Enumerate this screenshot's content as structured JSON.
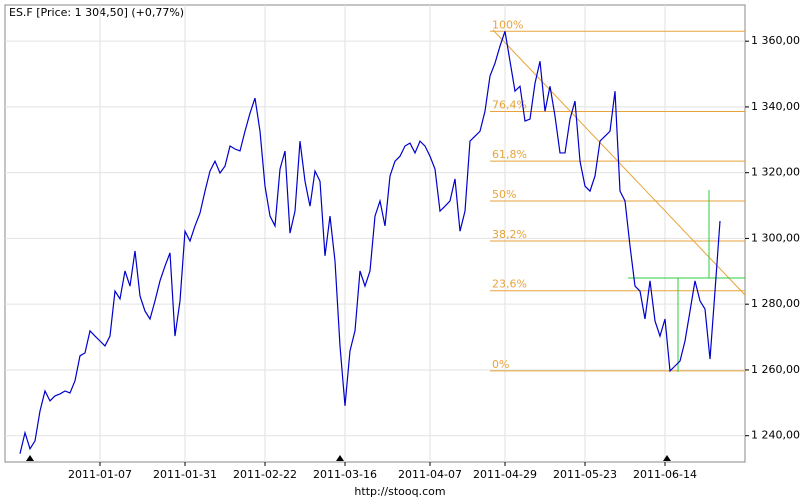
{
  "chart_data": {
    "type": "line",
    "title": "ES.F [Price: 1 304,50] (+0,77%)",
    "footer": "http://stooq.com",
    "categories": [
      null,
      null,
      null,
      null,
      null,
      null,
      null,
      null,
      null,
      null,
      null,
      null,
      null,
      null,
      null,
      null,
      "2011-01-07",
      null,
      null,
      null,
      null,
      null,
      null,
      null,
      null,
      null,
      null,
      null,
      null,
      null,
      null,
      null,
      null,
      "2011-01-31",
      null,
      null,
      null,
      null,
      null,
      null,
      null,
      null,
      null,
      null,
      null,
      null,
      null,
      null,
      null,
      "2011-02-22",
      null,
      null,
      null,
      null,
      null,
      null,
      null,
      null,
      null,
      null,
      null,
      null,
      null,
      null,
      null,
      "2011-03-16",
      null,
      null,
      null,
      null,
      null,
      null,
      null,
      null,
      null,
      null,
      null,
      null,
      null,
      null,
      null,
      null,
      "2011-04-07",
      null,
      null,
      null,
      null,
      null,
      null,
      null,
      null,
      null,
      null,
      null,
      null,
      null,
      null,
      "2011-04-29",
      null,
      null,
      null,
      null,
      null,
      null,
      null,
      null,
      null,
      null,
      null,
      null,
      null,
      null,
      null,
      "2011-05-23",
      null,
      null,
      null,
      null,
      null,
      null,
      null,
      null,
      null,
      null,
      null,
      null,
      null,
      null,
      null,
      "2011-06-14",
      null,
      null,
      null,
      null,
      null,
      null,
      null,
      null,
      null,
      null,
      null
    ],
    "series": [
      {
        "name": "ES.F",
        "color": "#0000cc",
        "values": [
          1234.5,
          1240.9,
          1236.0,
          1238.4,
          1247.5,
          1253.6,
          1250.6,
          1252.1,
          1252.7,
          1253.6,
          1253.0,
          1256.7,
          1264.3,
          1265.2,
          1271.9,
          1270.3,
          1268.8,
          1267.3,
          1270.3,
          1284.0,
          1281.6,
          1290.1,
          1285.5,
          1296.2,
          1282.5,
          1277.9,
          1275.5,
          1281.0,
          1287.1,
          1291.6,
          1295.6,
          1270.3,
          1281.0,
          1302.2,
          1299.2,
          1303.8,
          1307.7,
          1314.4,
          1320.5,
          1323.5,
          1319.9,
          1322.0,
          1328.1,
          1327.2,
          1326.6,
          1332.6,
          1338.1,
          1342.7,
          1332.6,
          1315.9,
          1306.8,
          1303.8,
          1321.1,
          1326.6,
          1301.6,
          1308.3,
          1329.6,
          1317.4,
          1309.8,
          1320.5,
          1317.4,
          1294.7,
          1306.8,
          1293.1,
          1267.3,
          1249.1,
          1265.8,
          1271.9,
          1290.1,
          1285.5,
          1290.1,
          1306.8,
          1311.4,
          1303.8,
          1319.0,
          1323.5,
          1325.0,
          1328.1,
          1329.0,
          1326.0,
          1329.6,
          1328.1,
          1325.0,
          1321.1,
          1308.3,
          1309.8,
          1311.4,
          1318.1,
          1302.2,
          1308.3,
          1329.6,
          1331.1,
          1332.6,
          1338.7,
          1349.4,
          1353.3,
          1358.5,
          1363.0,
          1353.9,
          1344.8,
          1346.3,
          1335.7,
          1336.3,
          1347.2,
          1353.9,
          1338.7,
          1346.3,
          1337.2,
          1326.0,
          1326.0,
          1336.3,
          1341.8,
          1323.5,
          1315.9,
          1314.4,
          1319.0,
          1329.6,
          1331.1,
          1332.6,
          1344.8,
          1314.4,
          1311.4,
          1297.7,
          1285.5,
          1284.0,
          1275.5,
          1287.1,
          1274.9,
          1270.3,
          1275.5,
          1259.7,
          1261.2,
          1262.7,
          1268.8,
          1277.9,
          1287.1,
          1281.0,
          1278.5,
          1263.3,
          1284.0,
          1305.3
        ]
      }
    ],
    "fib_levels": [
      {
        "value": 1363.0,
        "label": "100%"
      },
      {
        "value": 1338.6,
        "label": "76,4%"
      },
      {
        "value": 1323.5,
        "label": "61,8%"
      },
      {
        "value": 1311.4,
        "label": "50%"
      },
      {
        "value": 1299.2,
        "label": "38,2%"
      },
      {
        "value": 1284.1,
        "label": "23,6%"
      },
      {
        "value": 1259.7,
        "label": "0%"
      }
    ],
    "ylim": [
      1232,
      1371
    ],
    "yticks": [
      {
        "value": 1240,
        "label": "1 240,00"
      },
      {
        "value": 1260,
        "label": "1 260,00"
      },
      {
        "value": 1280,
        "label": "1 280,00"
      },
      {
        "value": 1300,
        "label": "1 300,00"
      },
      {
        "value": 1320,
        "label": "1 320,00"
      },
      {
        "value": 1340,
        "label": "1 340,00"
      },
      {
        "value": 1360,
        "label": "1 360,00"
      }
    ],
    "grid": true
  }
}
